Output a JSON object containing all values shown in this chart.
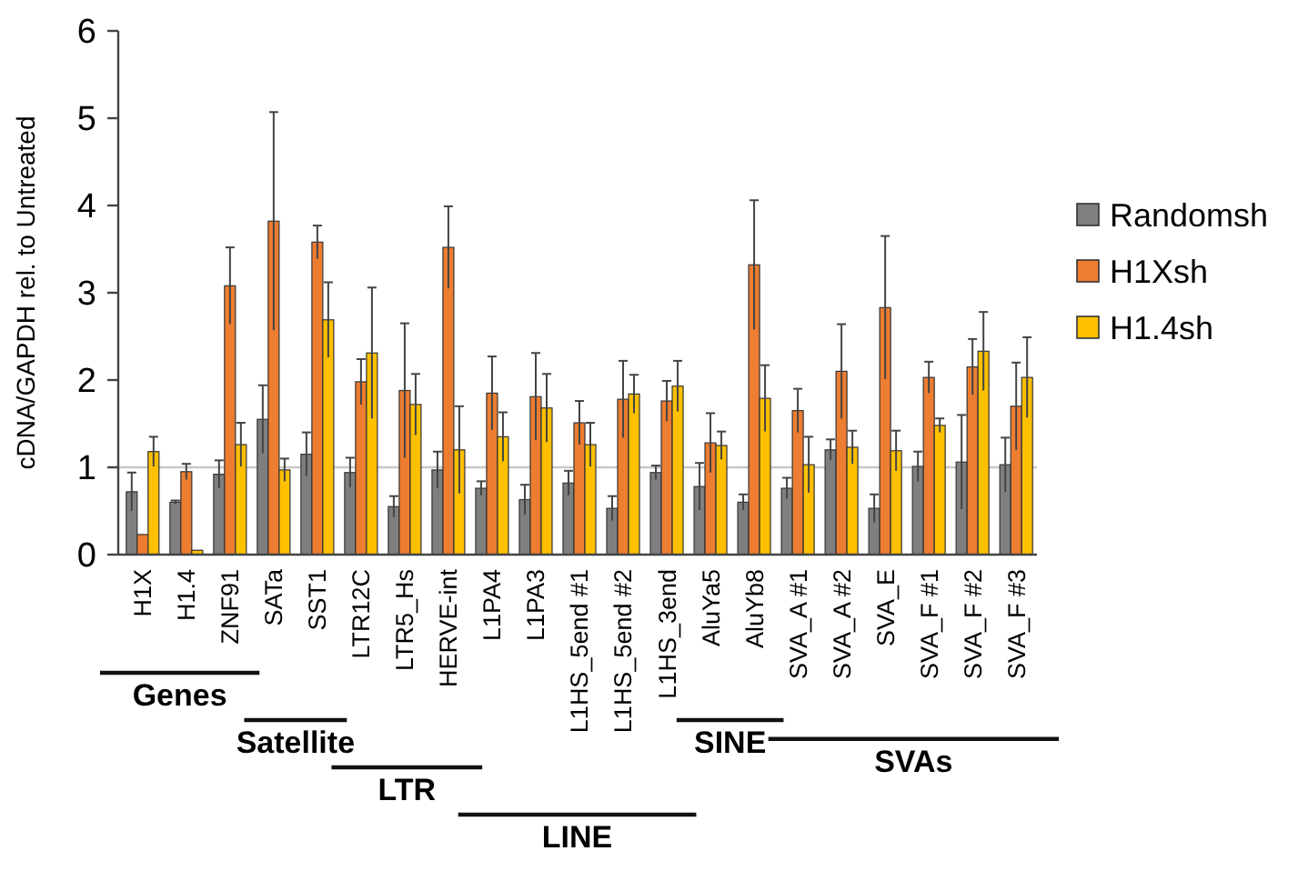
{
  "chart_data": {
    "type": "bar",
    "ylabel": "cDNA/GAPDH rel. to Untreated",
    "categories": [
      "H1X",
      "H1.4",
      "ZNF91",
      "SATa",
      "SST1",
      "LTR12C",
      "LTR5_Hs",
      "HERVE-int",
      "L1PA4",
      "L1PA3",
      "L1HS_5end #1",
      "L1HS_5end #2",
      "L1HS_3end",
      "AluYa5",
      "AluYb8",
      "SVA_A #1",
      "SVA_A #2",
      "SVA_E",
      "SVA_F #1",
      "SVA_F #2",
      "SVA_F #3"
    ],
    "series": [
      {
        "name": "Randomsh",
        "color": "#7f7f7f",
        "values": [
          0.72,
          0.6,
          0.92,
          1.55,
          1.15,
          0.94,
          0.55,
          0.97,
          0.76,
          0.63,
          0.82,
          0.53,
          0.94,
          0.78,
          0.6,
          0.76,
          1.2,
          0.53,
          1.01,
          1.06,
          1.03
        ],
        "errors": [
          0.22,
          0.02,
          0.16,
          0.39,
          0.25,
          0.17,
          0.12,
          0.21,
          0.08,
          0.17,
          0.14,
          0.14,
          0.08,
          0.27,
          0.09,
          0.12,
          0.12,
          0.16,
          0.17,
          0.54,
          0.31
        ]
      },
      {
        "name": "H1Xsh",
        "color": "#ed7d31",
        "values": [
          0.23,
          0.95,
          3.08,
          3.82,
          3.58,
          1.98,
          1.88,
          3.52,
          1.85,
          1.81,
          1.51,
          1.78,
          1.76,
          1.28,
          3.32,
          1.65,
          2.1,
          2.83,
          2.03,
          2.15,
          1.7
        ],
        "errors": [
          null,
          0.09,
          0.44,
          1.25,
          0.19,
          0.26,
          0.77,
          0.47,
          0.42,
          0.5,
          0.25,
          0.44,
          0.23,
          0.34,
          0.74,
          0.25,
          0.54,
          0.82,
          0.18,
          0.32,
          0.5
        ]
      },
      {
        "name": "H1.4sh",
        "color": "#ffc000",
        "values": [
          1.18,
          0.05,
          1.26,
          0.97,
          2.69,
          2.31,
          1.72,
          1.2,
          1.35,
          1.68,
          1.26,
          1.84,
          1.93,
          1.25,
          1.79,
          1.03,
          1.23,
          1.19,
          1.48,
          2.33,
          2.03
        ],
        "errors": [
          0.17,
          null,
          0.25,
          0.13,
          0.43,
          0.75,
          0.35,
          0.5,
          0.28,
          0.39,
          0.25,
          0.22,
          0.29,
          0.16,
          0.38,
          0.32,
          0.19,
          0.23,
          0.08,
          0.45,
          0.46
        ]
      }
    ],
    "ylim": [
      0,
      6
    ],
    "yticks": [
      0,
      1,
      2,
      3,
      4,
      5,
      6
    ],
    "grid": false,
    "legend": "right",
    "ref_lines": [
      {
        "axis": "y",
        "value": 1,
        "color": "#c8c8c8"
      }
    ],
    "annotations": [
      "Genes",
      "Satellite",
      "LTR",
      "LINE",
      "SINE",
      "SVAs"
    ]
  }
}
